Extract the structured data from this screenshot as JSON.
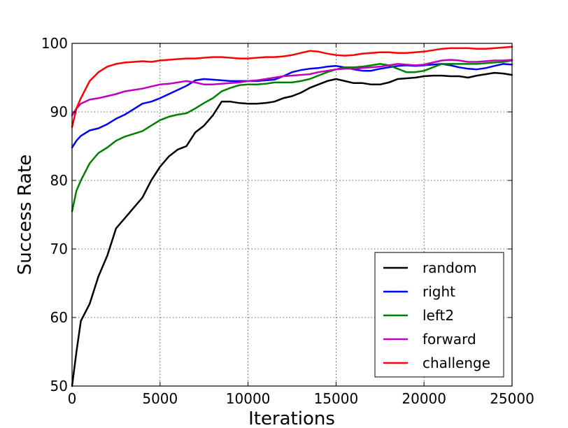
{
  "chart_data": {
    "type": "line",
    "title": "",
    "xlabel": "Iterations",
    "ylabel": "Success Rate",
    "xlim": [
      0,
      25000
    ],
    "ylim": [
      50,
      100
    ],
    "xticks": [
      0,
      5000,
      10000,
      15000,
      20000,
      25000
    ],
    "yticks": [
      50,
      60,
      70,
      80,
      90,
      100
    ],
    "grid": true,
    "legend": {
      "placement": "lower-right"
    },
    "series": [
      {
        "name": "random",
        "color": "#000000",
        "x": [
          0,
          250,
          500,
          1000,
          1500,
          2000,
          2500,
          3000,
          3500,
          4000,
          4500,
          5000,
          5500,
          6000,
          6500,
          7000,
          7500,
          8000,
          8500,
          9000,
          9500,
          10000,
          10500,
          11000,
          11500,
          12000,
          12500,
          13000,
          13500,
          14000,
          14500,
          15000,
          15500,
          16000,
          16500,
          17000,
          17500,
          18000,
          18500,
          19000,
          19500,
          20000,
          20500,
          21000,
          21500,
          22000,
          22500,
          23000,
          23500,
          24000,
          24500,
          25000
        ],
        "values": [
          50,
          55,
          59.5,
          62,
          66,
          69,
          73,
          74.5,
          76,
          77.5,
          80,
          82,
          83.5,
          84.5,
          85,
          87,
          88,
          89.5,
          91.5,
          91.5,
          91.3,
          91.2,
          91.2,
          91.3,
          91.5,
          92,
          92.3,
          92.8,
          93.5,
          94,
          94.5,
          94.8,
          94.5,
          94.2,
          94.2,
          94,
          94,
          94.3,
          94.8,
          94.9,
          95,
          95.2,
          95.3,
          95.3,
          95.2,
          95.2,
          95,
          95.3,
          95.5,
          95.7,
          95.6,
          95.4
        ]
      },
      {
        "name": "right",
        "color": "#0000ff",
        "x": [
          0,
          250,
          500,
          1000,
          1500,
          2000,
          2500,
          3000,
          3500,
          4000,
          4500,
          5000,
          5500,
          6000,
          6500,
          7000,
          7500,
          8000,
          8500,
          9000,
          9500,
          10000,
          10500,
          11000,
          11500,
          12000,
          12500,
          13000,
          13500,
          14000,
          14500,
          15000,
          15500,
          16000,
          16500,
          17000,
          17500,
          18000,
          18500,
          19000,
          19500,
          20000,
          20500,
          21000,
          21500,
          22000,
          22500,
          23000,
          23500,
          24000,
          24500,
          25000
        ],
        "values": [
          84.8,
          85.8,
          86.5,
          87.3,
          87.6,
          88.2,
          89,
          89.6,
          90.4,
          91.2,
          91.5,
          92,
          92.6,
          93.2,
          93.8,
          94.6,
          94.8,
          94.7,
          94.6,
          94.5,
          94.5,
          94.5,
          94.5,
          94.6,
          94.7,
          95.2,
          95.8,
          96.1,
          96.3,
          96.4,
          96.6,
          96.7,
          96.5,
          96.2,
          96,
          96,
          96.3,
          96.5,
          96.7,
          96.8,
          96.7,
          96.8,
          96.9,
          97,
          96.8,
          96.5,
          96.3,
          96.2,
          96.4,
          96.7,
          97,
          96.9
        ]
      },
      {
        "name": "left2",
        "color": "#008000",
        "x": [
          0,
          250,
          500,
          1000,
          1500,
          2000,
          2500,
          3000,
          3500,
          4000,
          4500,
          5000,
          5500,
          6000,
          6500,
          7000,
          7500,
          8000,
          8500,
          9000,
          9500,
          10000,
          10500,
          11000,
          11500,
          12000,
          12500,
          13000,
          13500,
          14000,
          14500,
          15000,
          15500,
          16000,
          16500,
          17000,
          17500,
          18000,
          18500,
          19000,
          19500,
          20000,
          20500,
          21000,
          21500,
          22000,
          22500,
          23000,
          23500,
          24000,
          24500,
          25000
        ],
        "values": [
          75.5,
          78.5,
          80,
          82.5,
          84,
          84.8,
          85.8,
          86.4,
          86.8,
          87.2,
          88,
          88.8,
          89.3,
          89.6,
          89.8,
          90.5,
          91.3,
          92,
          93,
          93.5,
          93.9,
          94,
          94,
          94.1,
          94.3,
          94.3,
          94.3,
          94.5,
          94.8,
          95.3,
          95.8,
          96.2,
          96.5,
          96.5,
          96.6,
          96.8,
          97,
          96.8,
          96.3,
          95.8,
          95.8,
          96,
          96.5,
          97,
          97,
          97,
          97,
          97,
          97.1,
          97.2,
          97.3,
          97.5
        ]
      },
      {
        "name": "forward",
        "color": "#bf00bf",
        "x": [
          0,
          250,
          500,
          1000,
          1500,
          2000,
          2500,
          3000,
          3500,
          4000,
          4500,
          5000,
          5500,
          6000,
          6500,
          7000,
          7500,
          8000,
          8500,
          9000,
          9500,
          10000,
          10500,
          11000,
          11500,
          12000,
          12500,
          13000,
          13500,
          14000,
          14500,
          15000,
          15500,
          16000,
          16500,
          17000,
          17500,
          18000,
          18500,
          19000,
          19500,
          20000,
          20500,
          21000,
          21500,
          22000,
          22500,
          23000,
          23500,
          24000,
          24500,
          25000
        ],
        "values": [
          89.5,
          90.5,
          91.2,
          91.8,
          92,
          92.3,
          92.6,
          93,
          93.2,
          93.4,
          93.7,
          94,
          94.1,
          94.3,
          94.5,
          94.3,
          94,
          94,
          94.1,
          94.2,
          94.3,
          94.5,
          94.6,
          94.8,
          95,
          95.2,
          95.3,
          95.4,
          95.5,
          95.8,
          96,
          96.2,
          96.3,
          96.3,
          96.4,
          96.5,
          96.6,
          96.8,
          97,
          96.9,
          96.8,
          96.9,
          97.2,
          97.5,
          97.6,
          97.5,
          97.3,
          97.3,
          97.4,
          97.5,
          97.5,
          97.6
        ]
      },
      {
        "name": "challenge",
        "color": "#ff0000",
        "x": [
          0,
          250,
          500,
          1000,
          1500,
          2000,
          2500,
          3000,
          3500,
          4000,
          4500,
          5000,
          5500,
          6000,
          6500,
          7000,
          7500,
          8000,
          8500,
          9000,
          9500,
          10000,
          10500,
          11000,
          11500,
          12000,
          12500,
          13000,
          13500,
          14000,
          14500,
          15000,
          15500,
          16000,
          16500,
          17000,
          17500,
          18000,
          18500,
          19000,
          19500,
          20000,
          20500,
          21000,
          21500,
          22000,
          22500,
          23000,
          23500,
          24000,
          24500,
          25000
        ],
        "values": [
          87.8,
          90.5,
          92,
          94.5,
          95.8,
          96.6,
          97,
          97.2,
          97.3,
          97.4,
          97.3,
          97.5,
          97.6,
          97.7,
          97.8,
          97.8,
          97.9,
          98,
          98,
          97.9,
          97.8,
          97.8,
          97.9,
          98,
          98,
          98.1,
          98.3,
          98.6,
          98.9,
          98.8,
          98.5,
          98.3,
          98.2,
          98.3,
          98.5,
          98.6,
          98.7,
          98.7,
          98.6,
          98.6,
          98.7,
          98.8,
          99,
          99.2,
          99.3,
          99.3,
          99.3,
          99.2,
          99.2,
          99.3,
          99.4,
          99.5
        ]
      }
    ]
  }
}
